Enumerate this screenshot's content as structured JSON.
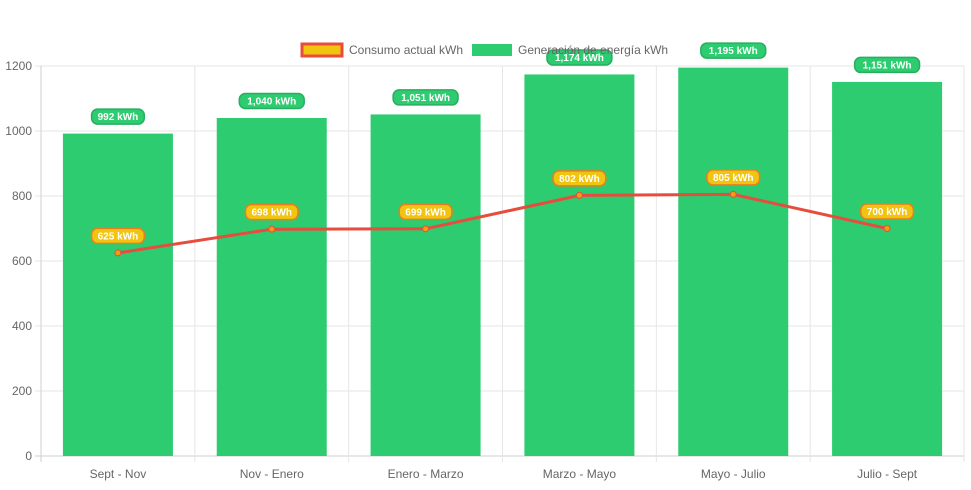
{
  "chart_data": {
    "type": "bar",
    "categories": [
      "Sept - Nov",
      "Nov - Enero",
      "Enero - Marzo",
      "Marzo - Mayo",
      "Mayo - Julio",
      "Julio - Sept"
    ],
    "series": [
      {
        "name": "Consumo actual kWh",
        "kind": "line",
        "values": [
          625,
          698,
          699,
          802,
          805,
          700
        ],
        "labels": [
          "625 kWh",
          "698 kWh",
          "699 kWh",
          "802 kWh",
          "805 kWh",
          "700 kWh"
        ],
        "color": "#e74c3c",
        "legend_fill": "#f1c40f"
      },
      {
        "name": "Generación de energía kWh",
        "kind": "bar",
        "values": [
          992,
          1040,
          1051,
          1174,
          1195,
          1151
        ],
        "labels": [
          "992 kWh",
          "1,040 kWh",
          "1,051 kWh",
          "1,174 kWh",
          "1,195 kWh",
          "1,151 kWh"
        ],
        "color": "#2ecc71"
      }
    ],
    "ylim": [
      0,
      1200
    ],
    "yticks": [
      "0",
      "200",
      "400",
      "600",
      "800",
      "1000",
      "1200"
    ],
    "grid": true,
    "legend_position": "top"
  }
}
